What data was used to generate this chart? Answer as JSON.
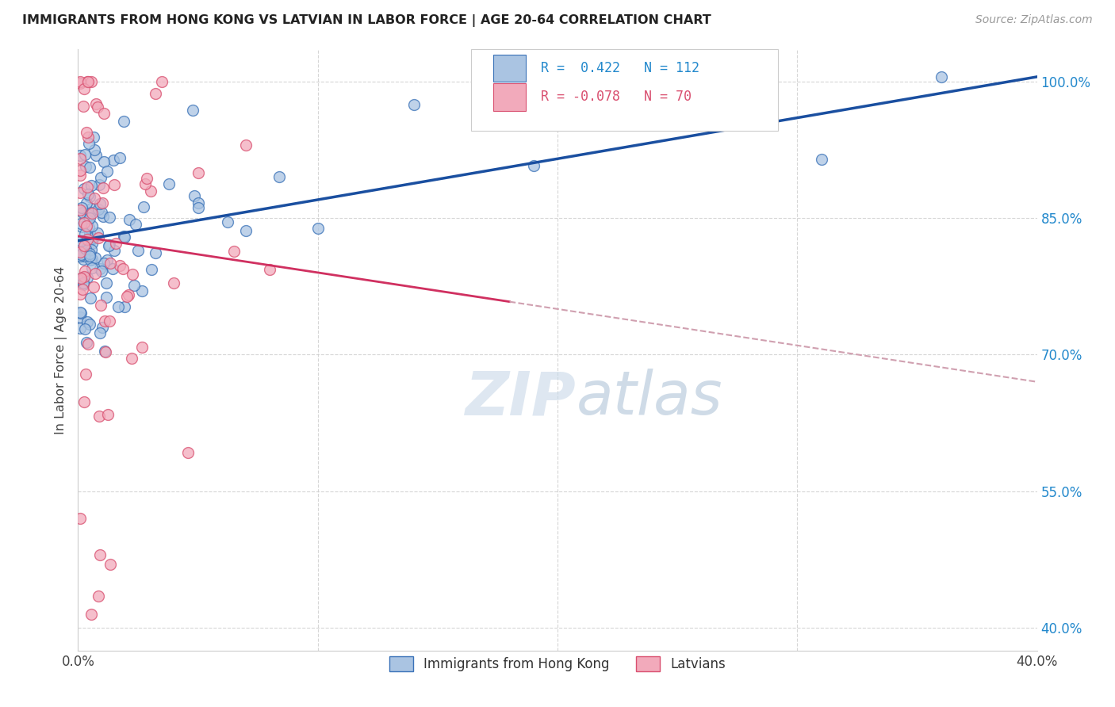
{
  "title": "IMMIGRANTS FROM HONG KONG VS LATVIAN IN LABOR FORCE | AGE 20-64 CORRELATION CHART",
  "source": "Source: ZipAtlas.com",
  "ylabel": "In Labor Force | Age 20-64",
  "y_ticks": [
    0.4,
    0.55,
    0.7,
    0.85,
    1.0
  ],
  "y_tick_labels": [
    "40.0%",
    "55.0%",
    "70.0%",
    "85.0%",
    "100.0%"
  ],
  "x_min": 0.0,
  "x_max": 0.4,
  "y_min": 0.375,
  "y_max": 1.035,
  "legend_R_hk": "0.422",
  "legend_N_hk": "112",
  "legend_R_lat": "-0.078",
  "legend_N_lat": "70",
  "hk_face_color": "#aac4e2",
  "hk_edge_color": "#3a72b8",
  "lat_face_color": "#f2aabb",
  "lat_edge_color": "#d95070",
  "hk_line_color": "#1a4fa0",
  "lat_line_color": "#d03060",
  "lat_dash_color": "#d0a0b0",
  "watermark_color": "#c8d8e8",
  "background_color": "#ffffff",
  "grid_color": "#cccccc",
  "title_color": "#222222",
  "source_color": "#999999",
  "ylabel_color": "#444444",
  "tick_label_color": "#2288cc",
  "bottom_legend_label_color": "#333333"
}
